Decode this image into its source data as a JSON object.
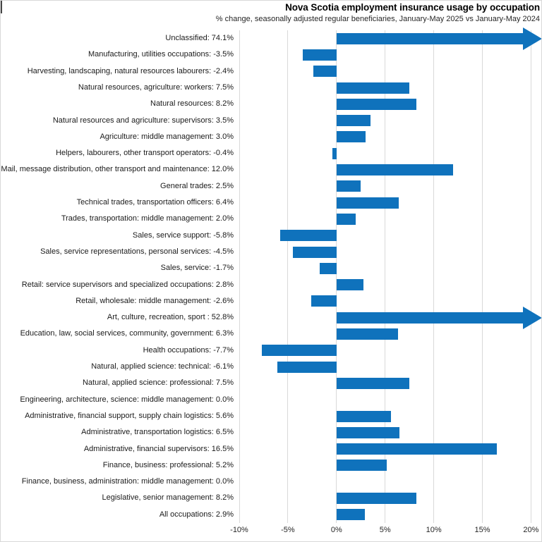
{
  "chart_data": {
    "type": "bar",
    "orientation": "horizontal",
    "title": "Nova Scotia employment insurance usage by occupation",
    "subtitle": "% change, seasonally adjusted regular beneficiaries, January-May 2025 vs January-May 2024",
    "xlim": [
      -10,
      20
    ],
    "grid": true,
    "legend": false,
    "bar_color": "#0F72BC",
    "gridline_color": "#D9D9D9",
    "x_ticks": [
      {
        "label": "-10%",
        "value": -10
      },
      {
        "label": "-5%",
        "value": -5
      },
      {
        "label": "0%",
        "value": 0
      },
      {
        "label": "5%",
        "value": 5
      },
      {
        "label": "10%",
        "value": 10
      },
      {
        "label": "15%",
        "value": 15
      },
      {
        "label": "20%",
        "value": 20
      }
    ],
    "rows": [
      {
        "category": "Unclassified",
        "value": 74.1,
        "display": "Unclassified: 74.1%",
        "clipped": true
      },
      {
        "category": "Manufacturing, utilities occupations",
        "value": -3.5,
        "display": "Manufacturing, utilities occupations: -3.5%",
        "clipped": false
      },
      {
        "category": "Harvesting, landscaping, natural resources labourers",
        "value": -2.4,
        "display": "Harvesting, landscaping, natural resources labourers: -2.4%",
        "clipped": false
      },
      {
        "category": "Natural resources, agriculture: workers",
        "value": 7.5,
        "display": "Natural resources, agriculture: workers: 7.5%",
        "clipped": false
      },
      {
        "category": "Natural resources",
        "value": 8.2,
        "display": "Natural resources: 8.2%",
        "clipped": false
      },
      {
        "category": "Natural resources and agriculture: supervisors",
        "value": 3.5,
        "display": "Natural resources and agriculture: supervisors: 3.5%",
        "clipped": false
      },
      {
        "category": "Agriculture: middle management",
        "value": 3.0,
        "display": "Agriculture: middle management: 3.0%",
        "clipped": false
      },
      {
        "category": "Helpers, labourers, other transport operators",
        "value": -0.4,
        "display": "Helpers, labourers, other transport operators: -0.4%",
        "clipped": false
      },
      {
        "category": "Mail, message distribution, other transport and maintenance",
        "value": 12.0,
        "display": "Mail, message distribution, other transport and maintenance: 12.0%",
        "clipped": false
      },
      {
        "category": "General trades",
        "value": 2.5,
        "display": "General trades: 2.5%",
        "clipped": false
      },
      {
        "category": "Technical trades, transportation officers",
        "value": 6.4,
        "display": "Technical trades, transportation officers: 6.4%",
        "clipped": false
      },
      {
        "category": "Trades, transportation: middle management",
        "value": 2.0,
        "display": "Trades, transportation: middle management: 2.0%",
        "clipped": false
      },
      {
        "category": "Sales, service support",
        "value": -5.8,
        "display": "Sales, service support: -5.8%",
        "clipped": false
      },
      {
        "category": "Sales, service representations, personal services",
        "value": -4.5,
        "display": "Sales, service representations, personal services: -4.5%",
        "clipped": false
      },
      {
        "category": "Sales, service",
        "value": -1.7,
        "display": "Sales, service: -1.7%",
        "clipped": false
      },
      {
        "category": "Retail: service supervisors and specialized occupations",
        "value": 2.8,
        "display": "Retail: service supervisors and specialized occupations: 2.8%",
        "clipped": false
      },
      {
        "category": "Retail, wholesale: middle management",
        "value": -2.6,
        "display": "Retail, wholesale: middle management: -2.6%",
        "clipped": false
      },
      {
        "category": "Art, culture, recreation, sport",
        "value": 52.8,
        "display": "Art, culture, recreation, sport : 52.8%",
        "clipped": true
      },
      {
        "category": "Education, law, social services, community, government",
        "value": 6.3,
        "display": "Education, law, social services, community, government: 6.3%",
        "clipped": false
      },
      {
        "category": "Health occupations",
        "value": -7.7,
        "display": "Health occupations: -7.7%",
        "clipped": false
      },
      {
        "category": "Natural, applied science: technical",
        "value": -6.1,
        "display": "Natural, applied science: technical: -6.1%",
        "clipped": false
      },
      {
        "category": "Natural, applied science: professional",
        "value": 7.5,
        "display": "Natural, applied science: professional: 7.5%",
        "clipped": false
      },
      {
        "category": "Engineering, architecture, science: middle management",
        "value": 0.0,
        "display": "Engineering, architecture, science: middle management: 0.0%",
        "clipped": false
      },
      {
        "category": "Administrative, financial support, supply chain logistics",
        "value": 5.6,
        "display": "Administrative, financial support, supply chain logistics: 5.6%",
        "clipped": false
      },
      {
        "category": "Administrative, transportation logistics",
        "value": 6.5,
        "display": "Administrative, transportation logistics: 6.5%",
        "clipped": false
      },
      {
        "category": "Administrative, financial supervisors",
        "value": 16.5,
        "display": "Administrative, financial supervisors: 16.5%",
        "clipped": false
      },
      {
        "category": "Finance, business: professional",
        "value": 5.2,
        "display": "Finance, business: professional: 5.2%",
        "clipped": false
      },
      {
        "category": "Finance, business, administration: middle management",
        "value": 0.0,
        "display": "Finance, business, administration: middle management: 0.0%",
        "clipped": false
      },
      {
        "category": "Legislative, senior management",
        "value": 8.2,
        "display": "Legislative, senior management: 8.2%",
        "clipped": false
      },
      {
        "category": "All occupations",
        "value": 2.9,
        "display": "All occupations: 2.9%",
        "clipped": false
      }
    ]
  }
}
